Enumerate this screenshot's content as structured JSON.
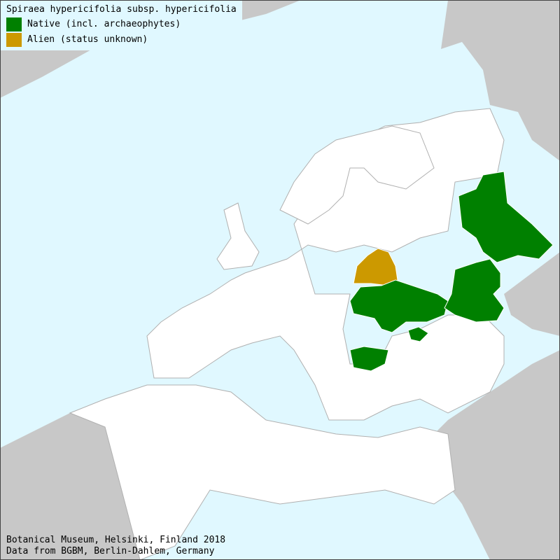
{
  "title": "Spiraea hypericifolia subsp. hypericifolia",
  "legend": [
    {
      "label": "Native (incl. archaeophytes)",
      "color": "#008000"
    },
    {
      "label": "Alien (status unknown)",
      "color": "#cc9900"
    }
  ],
  "colors": {
    "sea": "#e0f8ff",
    "land": "#ffffff",
    "outside": "#c8c8c8",
    "border": "#b0b0b0"
  },
  "regions": {
    "native": [
      "Central/East European Russia",
      "South European Russia",
      "Ukraine",
      "Crimea",
      "Bulgaria"
    ],
    "alien": [
      "Belarus"
    ]
  },
  "credits": {
    "line1": "Botanical Museum, Helsinki, Finland 2018",
    "line2": "Data from BGBM, Berlin-Dahlem, Germany"
  }
}
